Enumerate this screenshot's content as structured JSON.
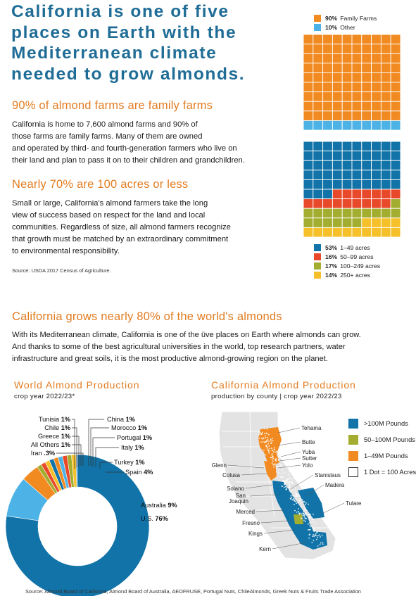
{
  "headline": {
    "line1": "California is one of five",
    "line2": "places on Earth with the",
    "line3": "Mediterranean climate",
    "line4": "needed to grow almonds."
  },
  "family": {
    "heading": "90% of almond farms are family farms",
    "line1": "California is home to 7,600 almond farms and 90% of",
    "line2": "those farms are family farms. Many of them are owned",
    "line3": "and operated by third- and fourth-generation farmers who live on",
    "line4": "their land and plan to pass it on to their children and grandchildren."
  },
  "acres": {
    "heading": "Nearly 70% are 100 acres or less",
    "line1": "Small or large, California's almond farmers take the long",
    "line2": "view of success based on respect for the land and local",
    "line3": "communities. Regardless of size, all almond farmers recognize",
    "line4": "that growth must be matched by an extraordinary commitment",
    "line5": "to environmental responsibility."
  },
  "source_usda": "Source: USDA 2017 Census of Agriculture.",
  "world": {
    "heading": "California grows nearly 80% of the world's almonds",
    "line1": "With its Mediterranean climate, California is one of the üve places on Earth where almonds can grow.",
    "line2": "And thanks to some of the best agricultural universities in the world, top research partners, water",
    "line3": "infrastructure and great soils, it is the most productive almond-growing region on the planet."
  },
  "source_footer": "Source: Almond Board of California, Almond Board of Australia, AEOFRUSE, Portugal Nuts, ChileAlmonds, Greek Nuts & Fruits Trade Association",
  "colors": {
    "orange": "#f18a21",
    "lightblue": "#4db3e6",
    "blue": "#1173a8",
    "red": "#e8492b",
    "olive": "#a3ad2f",
    "yellow": "#f6c02a",
    "heading_orange": "#e27c21",
    "headline_blue": "#1f6d96"
  },
  "chart_data": [
    {
      "type": "waffle",
      "legend": [
        {
          "pct": "90%",
          "label": "Family Farms",
          "value": 90,
          "color": "#f18a21"
        },
        {
          "pct": "10%",
          "label": "Other",
          "value": 10,
          "color": "#4db3e6"
        }
      ]
    },
    {
      "type": "waffle",
      "legend": [
        {
          "pct": "53%",
          "label": "1–49 acres",
          "value": 53,
          "color": "#1173a8"
        },
        {
          "pct": "16%",
          "label": "50–99 acres",
          "value": 16,
          "color": "#e8492b"
        },
        {
          "pct": "17%",
          "label": "100–249 acres",
          "value": 17,
          "color": "#a3ad2f"
        },
        {
          "pct": "14%",
          "label": "250+ acres",
          "value": 14,
          "color": "#f6c02a"
        }
      ]
    },
    {
      "type": "pie",
      "title": "World Almond Production",
      "subtitle": "crop year 2022/23*",
      "slices": [
        {
          "name": "U.S.",
          "pct": "76%",
          "value": 76,
          "color": "#1173a8"
        },
        {
          "name": "Australia",
          "pct": "9%",
          "value": 9,
          "color": "#4db3e6"
        },
        {
          "name": "Spain",
          "pct": "4%",
          "value": 4,
          "color": "#f18a21"
        },
        {
          "name": "Turkey",
          "pct": "1%",
          "value": 1,
          "color": "#a3ad2f"
        },
        {
          "name": "Italy",
          "pct": "1%",
          "value": 1,
          "color": "#e8492b"
        },
        {
          "name": "Portugal",
          "pct": "1%",
          "value": 1,
          "color": "#f6c02a"
        },
        {
          "name": "Morocco",
          "pct": "1%",
          "value": 1,
          "color": "#1173a8"
        },
        {
          "name": "China",
          "pct": "1%",
          "value": 1,
          "color": "#f18a21"
        },
        {
          "name": "Tunisia",
          "pct": "1%",
          "value": 1,
          "color": "#4db3e6"
        },
        {
          "name": "Chile",
          "pct": "1%",
          "value": 1,
          "color": "#e8492b"
        },
        {
          "name": "Greece",
          "pct": "1%",
          "value": 1,
          "color": "#a3ad2f"
        },
        {
          "name": "All Others",
          "pct": "1%",
          "value": 1,
          "color": "#f6c02a"
        },
        {
          "name": "Iran",
          "pct": ".3%",
          "value": 0.3,
          "color": "#1173a8"
        }
      ]
    },
    {
      "type": "map",
      "title": "California Almond Production",
      "subtitle": "production by county | crop year 2022/23",
      "legend": [
        {
          "label": ">100M Pounds",
          "color": "#1173a8"
        },
        {
          "label": "50–100M Pounds",
          "color": "#a3ad2f"
        },
        {
          "label": "1–49M Pounds",
          "color": "#f18a21"
        },
        {
          "label": "1 Dot = 100 Acres",
          "color": "#ffffff"
        }
      ],
      "counties": [
        "Tehama",
        "Butte",
        "Yuba",
        "Sutter",
        "Yolo",
        "Glenn",
        "Colusa",
        "Solano",
        "San Joaquin",
        "Merced",
        "Fresno",
        "Kings",
        "Kern",
        "Stanislaus",
        "Madera",
        "Tulare"
      ]
    }
  ]
}
